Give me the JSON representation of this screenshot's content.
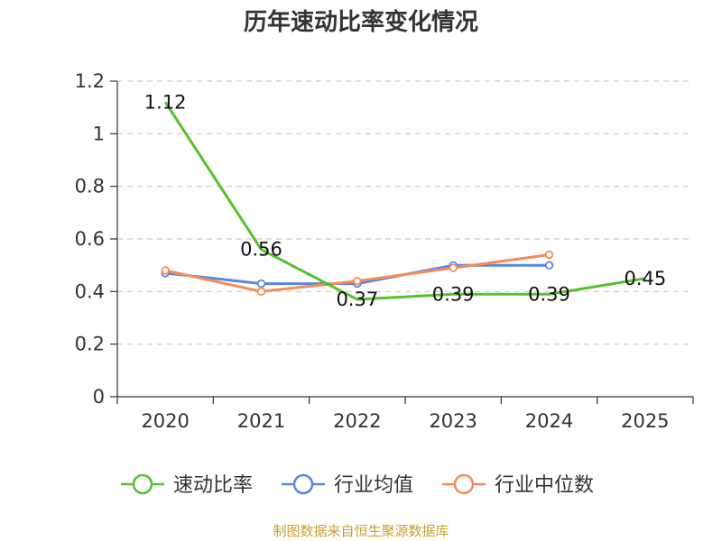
{
  "colors": {
    "speed": "#55c12e",
    "avg": "#5b86dd",
    "median": "#f28c5b",
    "grid": "#cccccc",
    "axis": "#333333",
    "source": "#c8a032"
  },
  "chart_data": {
    "type": "line",
    "title": "历年速动比率变化情况",
    "categories": [
      "2020",
      "2021",
      "2022",
      "2023",
      "2024",
      "2025"
    ],
    "ylim": [
      0,
      1.2
    ],
    "yticks": [
      "0",
      "0.2",
      "0.4",
      "0.6",
      "0.8",
      "1",
      "1.2"
    ],
    "ytick_values": [
      0,
      0.2,
      0.4,
      0.6,
      0.8,
      1.0,
      1.2
    ],
    "grid": true,
    "legend_position": "bottom",
    "series": [
      {
        "name": "速动比率",
        "color_key": "speed",
        "values": [
          1.12,
          0.56,
          0.37,
          0.39,
          0.39,
          0.45
        ],
        "labels": [
          "1.12",
          "0.56",
          "0.37",
          "0.39",
          "0.39",
          "0.45"
        ],
        "show_labels": true,
        "show_points": false
      },
      {
        "name": "行业均值",
        "color_key": "avg",
        "values": [
          0.47,
          0.43,
          0.43,
          0.5,
          0.5,
          null
        ],
        "show_labels": false,
        "show_points": true
      },
      {
        "name": "行业中位数",
        "color_key": "median",
        "values": [
          0.48,
          0.4,
          0.44,
          0.49,
          0.54,
          null
        ],
        "show_labels": false,
        "show_points": true
      }
    ]
  },
  "source": "制图数据来自恒生聚源数据库"
}
